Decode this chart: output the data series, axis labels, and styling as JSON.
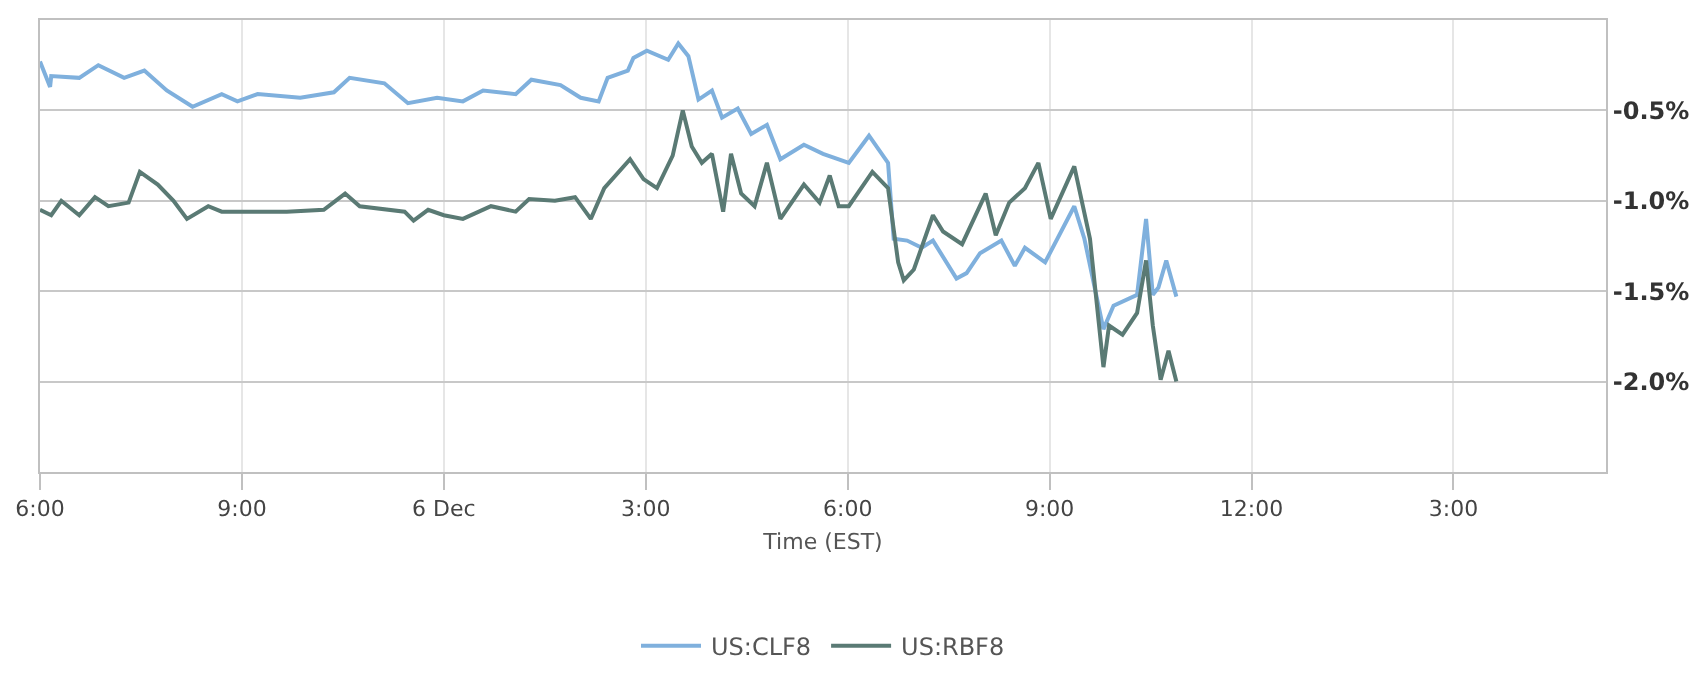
{
  "chart_data": {
    "type": "line",
    "xlabel": "Time (EST)",
    "legend": "bottom",
    "grid": true,
    "marker": "none",
    "line_style": "solid",
    "xlim": [
      "--12-05T18:00",
      "--12-06T17:16"
    ],
    "xticks": [
      {
        "value": "--12-05T18:00",
        "label": "6:00"
      },
      {
        "value": "--12-05T21:00",
        "label": "9:00"
      },
      {
        "value": "--12-06T00:00",
        "label": "6 Dec"
      },
      {
        "value": "--12-06T03:00",
        "label": "3:00"
      },
      {
        "value": "--12-06T06:00",
        "label": "6:00"
      },
      {
        "value": "--12-06T09:00",
        "label": "9:00"
      },
      {
        "value": "--12-06T12:00",
        "label": "12:00"
      },
      {
        "value": "--12-06T15:00",
        "label": "3:00"
      }
    ],
    "ylim": [
      -2.5,
      0
    ],
    "yticks": [
      {
        "value": -0.5,
        "label": "-0.5%"
      },
      {
        "value": -1.0,
        "label": "-1.0%"
      },
      {
        "value": -1.5,
        "label": "-1.5%"
      },
      {
        "value": -2.0,
        "label": "-2.0%"
      }
    ],
    "series": [
      {
        "name": "US:CLF8",
        "color": "#7fb0dd",
        "x": [
          "--12-05T18:00",
          "--12-05T18:09",
          "--12-05T18:10",
          "--12-05T18:35",
          "--12-05T18:52",
          "--12-05T19:15",
          "--12-05T19:33",
          "--12-05T19:53",
          "--12-05T20:16",
          "--12-05T20:42",
          "--12-05T20:56",
          "--12-05T21:14",
          "--12-05T21:52",
          "--12-05T22:22",
          "--12-05T22:36",
          "--12-05T23:07",
          "--12-05T23:28",
          "--12-05T23:54",
          "--12-06T00:17",
          "--12-06T00:35",
          "--12-06T01:04",
          "--12-06T01:18",
          "--12-06T01:44",
          "--12-06T02:02",
          "--12-06T02:18",
          "--12-06T02:26",
          "--12-06T02:44",
          "--12-06T02:49",
          "--12-06T03:01",
          "--12-06T03:20",
          "--12-06T03:29",
          "--12-06T03:38",
          "--12-06T03:47",
          "--12-06T03:59",
          "--12-06T04:08",
          "--12-06T04:22",
          "--12-06T04:34",
          "--12-06T04:48",
          "--12-06T05:00",
          "--12-06T05:21",
          "--12-06T05:38",
          "--12-06T06:01",
          "--12-06T06:19",
          "--12-06T06:36",
          "--12-06T06:41",
          "--12-06T06:53",
          "--12-06T07:06",
          "--12-06T07:16",
          "--12-06T07:37",
          "--12-06T07:46",
          "--12-06T07:58",
          "--12-06T08:17",
          "--12-06T08:29",
          "--12-06T08:38",
          "--12-06T08:56",
          "--12-06T09:22",
          "--12-06T09:31",
          "--12-06T09:48",
          "--12-06T09:57",
          "--12-06T10:18",
          "--12-06T10:26",
          "--12-06T10:32",
          "--12-06T10:37",
          "--12-06T10:44",
          "--12-06T10:53"
        ],
        "values": [
          -0.23,
          -0.37,
          -0.31,
          -0.32,
          -0.25,
          -0.32,
          -0.28,
          -0.39,
          -0.48,
          -0.41,
          -0.45,
          -0.41,
          -0.43,
          -0.4,
          -0.32,
          -0.35,
          -0.46,
          -0.43,
          -0.45,
          -0.39,
          -0.41,
          -0.33,
          -0.36,
          -0.43,
          -0.45,
          -0.32,
          -0.28,
          -0.21,
          -0.17,
          -0.22,
          -0.13,
          -0.2,
          -0.44,
          -0.39,
          -0.54,
          -0.49,
          -0.63,
          -0.58,
          -0.77,
          -0.69,
          -0.74,
          -0.79,
          -0.64,
          -0.79,
          -1.21,
          -1.22,
          -1.26,
          -1.22,
          -1.43,
          -1.4,
          -1.29,
          -1.22,
          -1.36,
          -1.26,
          -1.34,
          -1.03,
          -1.21,
          -1.71,
          -1.58,
          -1.52,
          -1.1,
          -1.52,
          -1.48,
          -1.33,
          -1.53
        ]
      },
      {
        "name": "US:RBF8",
        "color": "#5a7a74",
        "x": [
          "--12-05T18:00",
          "--12-05T18:10",
          "--12-05T18:19",
          "--12-05T18:35",
          "--12-05T18:49",
          "--12-05T19:01",
          "--12-05T19:19",
          "--12-05T19:29",
          "--12-05T19:45",
          "--12-05T19:59",
          "--12-05T20:11",
          "--12-05T20:30",
          "--12-05T20:42",
          "--12-05T21:40",
          "--12-05T22:13",
          "--12-05T22:32",
          "--12-05T22:45",
          "--12-05T23:25",
          "--12-05T23:33",
          "--12-05T23:46",
          "--12-06T00:00",
          "--12-06T00:17",
          "--12-06T00:42",
          "--12-06T01:04",
          "--12-06T01:16",
          "--12-06T01:39",
          "--12-06T01:57",
          "--12-06T02:11",
          "--12-06T02:23",
          "--12-06T02:46",
          "--12-06T02:58",
          "--12-06T03:10",
          "--12-06T03:24",
          "--12-06T03:33",
          "--12-06T03:41",
          "--12-06T03:50",
          "--12-06T03:59",
          "--12-06T04:09",
          "--12-06T04:16",
          "--12-06T04:25",
          "--12-06T04:37",
          "--12-06T04:48",
          "--12-06T05:00",
          "--12-06T05:21",
          "--12-06T05:35",
          "--12-06T05:44",
          "--12-06T05:52",
          "--12-06T06:01",
          "--12-06T06:22",
          "--12-06T06:36",
          "--12-06T06:45",
          "--12-06T06:50",
          "--12-06T06:59",
          "--12-06T07:16",
          "--12-06T07:25",
          "--12-06T07:42",
          "--12-06T08:03",
          "--12-06T08:12",
          "--12-06T08:24",
          "--12-06T08:38",
          "--12-06T08:50",
          "--12-06T09:01",
          "--12-06T09:22",
          "--12-06T09:36",
          "--12-06T09:48",
          "--12-06T09:53",
          "--12-06T10:05",
          "--12-06T10:18",
          "--12-06T10:26",
          "--12-06T10:32",
          "--12-06T10:39",
          "--12-06T10:46",
          "--12-06T10:53"
        ],
        "values": [
          -1.05,
          -1.08,
          -1.0,
          -1.08,
          -0.98,
          -1.03,
          -1.01,
          -0.84,
          -0.91,
          -1.0,
          -1.1,
          -1.03,
          -1.06,
          -1.06,
          -1.05,
          -0.96,
          -1.03,
          -1.06,
          -1.11,
          -1.05,
          -1.08,
          -1.1,
          -1.03,
          -1.06,
          -0.99,
          -1.0,
          -0.98,
          -1.1,
          -0.93,
          -0.77,
          -0.88,
          -0.93,
          -0.75,
          -0.5,
          -0.7,
          -0.79,
          -0.74,
          -1.06,
          -0.74,
          -0.96,
          -1.03,
          -0.79,
          -1.1,
          -0.91,
          -1.01,
          -0.86,
          -1.03,
          -1.03,
          -0.84,
          -0.93,
          -1.34,
          -1.44,
          -1.38,
          -1.08,
          -1.17,
          -1.24,
          -0.96,
          -1.19,
          -1.01,
          -0.93,
          -0.79,
          -1.1,
          -0.81,
          -1.21,
          -1.92,
          -1.69,
          -1.74,
          -1.62,
          -1.33,
          -1.69,
          -1.99,
          -1.83,
          -2.0
        ]
      }
    ]
  }
}
